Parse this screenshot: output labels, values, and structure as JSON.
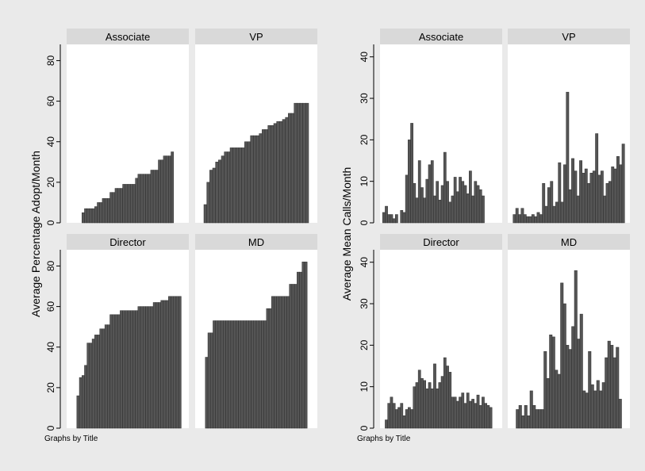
{
  "chart_data": [
    {
      "type": "bar",
      "ylabel": "Average Percentage Adopt/Month",
      "note": "Graphs by Title",
      "ylim": [
        0,
        88
      ],
      "yticks": [
        0,
        20,
        40,
        60,
        80
      ],
      "grid": false,
      "panels": [
        {
          "title": "Associate",
          "values": [
            0,
            0,
            0,
            0,
            0,
            0,
            5,
            7,
            7,
            7,
            7,
            8,
            10,
            10,
            12,
            12,
            12,
            15,
            15,
            17,
            17,
            17,
            19,
            19,
            19,
            19,
            19,
            22,
            24,
            24,
            24,
            24,
            24,
            26,
            26,
            26,
            31,
            31,
            33,
            33,
            33,
            35,
            0,
            0,
            0,
            0,
            0,
            0
          ]
        },
        {
          "title": "VP",
          "values": [
            0,
            0,
            0,
            9,
            20,
            26,
            27,
            30,
            31,
            33,
            35,
            35,
            37,
            37,
            37,
            37,
            37,
            40,
            40,
            43,
            43,
            43,
            44,
            46,
            46,
            48,
            48,
            49,
            50,
            50,
            51,
            52,
            54,
            54,
            59,
            59,
            59,
            59,
            59,
            0,
            0,
            0
          ]
        },
        {
          "title": "Director",
          "values": [
            0,
            0,
            0,
            0,
            16,
            25,
            26,
            31,
            42,
            42,
            44,
            46,
            46,
            49,
            49,
            51,
            51,
            56,
            56,
            56,
            56,
            58,
            58,
            58,
            58,
            58,
            58,
            58,
            60,
            60,
            60,
            60,
            60,
            60,
            62,
            62,
            62,
            63,
            63,
            63,
            65,
            65,
            65,
            65,
            65,
            0,
            0,
            0
          ]
        },
        {
          "title": "MD",
          "values": [
            0,
            0,
            0,
            0,
            35,
            47,
            47,
            53,
            53,
            53,
            53,
            53,
            53,
            53,
            53,
            53,
            53,
            53,
            53,
            53,
            53,
            53,
            53,
            53,
            53,
            53,
            53,
            53,
            59,
            59,
            65,
            65,
            65,
            65,
            65,
            65,
            65,
            71,
            71,
            71,
            77,
            77,
            82,
            82,
            0,
            0,
            0,
            0
          ]
        }
      ]
    },
    {
      "type": "bar",
      "ylabel": "Average Mean Calls/Month",
      "note": "Graphs by Title",
      "ylim": [
        0,
        43
      ],
      "yticks": [
        0,
        10,
        20,
        30,
        40
      ],
      "grid": false,
      "panels": [
        {
          "title": "Associate",
          "values": [
            0,
            2.5,
            4,
            2,
            2,
            1,
            2,
            0,
            3,
            2.5,
            11.5,
            20,
            24,
            9.5,
            6,
            15,
            8.5,
            6,
            10.5,
            14,
            15,
            6.5,
            10,
            5.5,
            9,
            17,
            10,
            5,
            6.5,
            11,
            7.5,
            11,
            10,
            9,
            7,
            12.5,
            6.5,
            10,
            9,
            8,
            6.5,
            0,
            0,
            0,
            0,
            0,
            0,
            0
          ]
        },
        {
          "title": "VP",
          "values": [
            0,
            0,
            2,
            3.5,
            2,
            3.5,
            2,
            1.5,
            1.5,
            2,
            1.5,
            2.5,
            2,
            9.5,
            4,
            8.5,
            10,
            4,
            5,
            14.5,
            5,
            14,
            31.5,
            8,
            15.5,
            12.5,
            6.5,
            15,
            12,
            13,
            9.5,
            12,
            12.5,
            21.5,
            11.5,
            12.5,
            6.5,
            9.5,
            10,
            13.5,
            13,
            16,
            14,
            19,
            0,
            0
          ]
        },
        {
          "title": "Director",
          "values": [
            0,
            0,
            2,
            6,
            7.5,
            6,
            4.5,
            5,
            6,
            3,
            4.5,
            5,
            4.5,
            10,
            11,
            14,
            12,
            11.5,
            9.5,
            11,
            9.5,
            15.5,
            9.5,
            11,
            12.5,
            17,
            15,
            13.5,
            7.5,
            7.5,
            6.5,
            7.5,
            8.5,
            6,
            8.5,
            6.5,
            7,
            6,
            8,
            5.5,
            7.5,
            6,
            5.5,
            5,
            0,
            0,
            0,
            0
          ]
        },
        {
          "title": "MD",
          "values": [
            0,
            0,
            0,
            4.5,
            5.5,
            3,
            5.5,
            3,
            9,
            5.5,
            4.5,
            4.5,
            4.5,
            18.5,
            12,
            22.5,
            22,
            14,
            13,
            35,
            30,
            20,
            19,
            24.5,
            38,
            21.5,
            27.5,
            9,
            8.5,
            18.5,
            10.5,
            9,
            11.5,
            9,
            11,
            17,
            21,
            20,
            17,
            19.5,
            7,
            0,
            0,
            0
          ]
        }
      ]
    }
  ]
}
